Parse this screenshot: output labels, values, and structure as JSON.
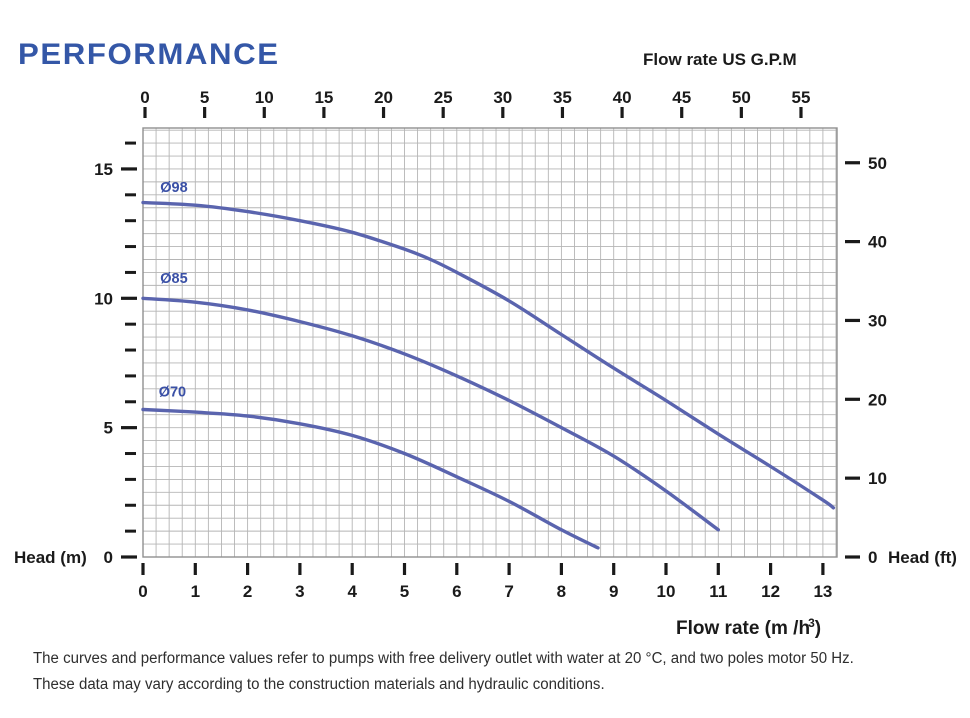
{
  "title": "PERFORMANCE",
  "footer": {
    "line1": "The curves and performance values refer to pumps with free delivery outlet with water at 20 °C, and two poles motor 50 Hz.",
    "line2": "These data may vary according to the construction materials and hydraulic conditions."
  },
  "chart_data": {
    "type": "line",
    "title": "PERFORMANCE",
    "axes": {
      "top": {
        "label": "Flow rate US  G.P.M",
        "unit": "US GPM",
        "ticks": [
          0,
          5,
          10,
          15,
          20,
          25,
          30,
          35,
          40,
          45,
          50,
          55
        ],
        "range": [
          0,
          58
        ]
      },
      "bottom": {
        "label_prefix": "Flow rate  (m /h",
        "label_sup": "3",
        "label_suffix": ")",
        "unit": "m3/h",
        "ticks": [
          0,
          1,
          2,
          3,
          4,
          5,
          6,
          7,
          8,
          9,
          10,
          11,
          12,
          13
        ],
        "range": [
          0,
          13.27
        ]
      },
      "left": {
        "label": "Head (m)",
        "unit": "m",
        "major_ticks": [
          0,
          5,
          10,
          15
        ],
        "minor_tick_step": 1,
        "range": [
          0,
          16.6
        ],
        "grid": true
      },
      "right": {
        "label": "Head (ft)",
        "unit": "ft",
        "ticks": [
          0,
          10,
          20,
          30,
          40,
          50
        ]
      }
    },
    "series": [
      {
        "name": "impeller-98",
        "label": "Ø98",
        "label_pos": [
          0.33,
          14.1
        ],
        "points": [
          [
            0,
            13.7
          ],
          [
            1,
            13.6
          ],
          [
            2,
            13.35
          ],
          [
            3,
            13.0
          ],
          [
            4,
            12.55
          ],
          [
            5,
            11.9
          ],
          [
            5.5,
            11.5
          ],
          [
            6,
            11.0
          ],
          [
            7,
            9.9
          ],
          [
            8,
            8.6
          ],
          [
            9,
            7.3
          ],
          [
            10,
            6.05
          ],
          [
            11,
            4.75
          ],
          [
            12,
            3.5
          ],
          [
            13,
            2.2
          ],
          [
            13.2,
            1.9
          ]
        ]
      },
      {
        "name": "impeller-85",
        "label": "Ø85",
        "label_pos": [
          0.33,
          10.6
        ],
        "points": [
          [
            0,
            10.0
          ],
          [
            1,
            9.85
          ],
          [
            2,
            9.55
          ],
          [
            3,
            9.1
          ],
          [
            4,
            8.55
          ],
          [
            5,
            7.85
          ],
          [
            6,
            7.0
          ],
          [
            7,
            6.05
          ],
          [
            8,
            5.0
          ],
          [
            9,
            3.9
          ],
          [
            10,
            2.55
          ],
          [
            11,
            1.05
          ]
        ]
      },
      {
        "name": "impeller-70",
        "label": "Ø70",
        "label_pos": [
          0.3,
          6.2
        ],
        "points": [
          [
            0,
            5.7
          ],
          [
            1,
            5.6
          ],
          [
            2,
            5.45
          ],
          [
            3,
            5.15
          ],
          [
            4,
            4.7
          ],
          [
            5,
            4.0
          ],
          [
            6,
            3.1
          ],
          [
            7,
            2.15
          ],
          [
            8,
            1.05
          ],
          [
            8.7,
            0.35
          ]
        ]
      }
    ],
    "colors": {
      "curve": "#5a64ae",
      "series_label": "#3a50a6",
      "title": "#3457a7",
      "axis_text": "#1a1a1a",
      "grid": "#b5b5b5",
      "border": "#909090",
      "footer_text": "#2e2e2e",
      "background": "#ffffff"
    },
    "grid": {
      "minor_x_step_m3h": 0.25,
      "minor_y_step_m": 0.5
    }
  }
}
